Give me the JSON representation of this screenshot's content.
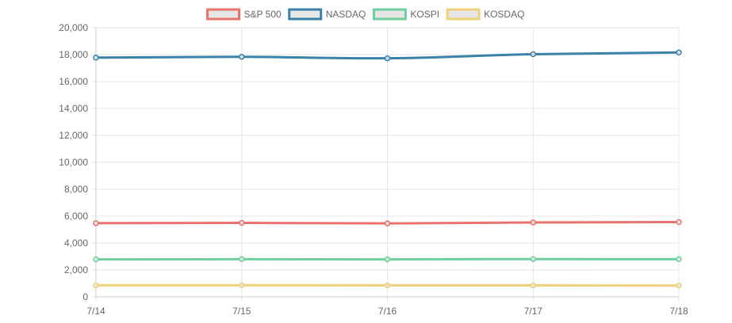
{
  "chart_data": {
    "type": "line",
    "categories": [
      "7/14",
      "7/15",
      "7/16",
      "7/17",
      "7/18"
    ],
    "series": [
      {
        "name": "S&P 500",
        "color": "#e8736c",
        "values": [
          5480,
          5500,
          5460,
          5530,
          5560
        ]
      },
      {
        "name": "NASDAQ",
        "color": "#3a83a8",
        "values": [
          17780,
          17840,
          17730,
          18030,
          18160
        ]
      },
      {
        "name": "KOSPI",
        "color": "#6fcf9f",
        "values": [
          2790,
          2800,
          2790,
          2810,
          2800
        ]
      },
      {
        "name": "KOSDAQ",
        "color": "#f1d07a",
        "values": [
          860,
          860,
          855,
          850,
          840
        ]
      }
    ],
    "ylim": [
      0,
      20000
    ],
    "yticks": [
      0,
      2000,
      4000,
      6000,
      8000,
      10000,
      12000,
      14000,
      16000,
      18000,
      20000
    ],
    "ytick_labels": [
      "0",
      "2,000",
      "4,000",
      "6,000",
      "8,000",
      "10,000",
      "12,000",
      "14,000",
      "16,000",
      "18,000",
      "20,000"
    ],
    "grid": true,
    "legend_position": "top"
  }
}
